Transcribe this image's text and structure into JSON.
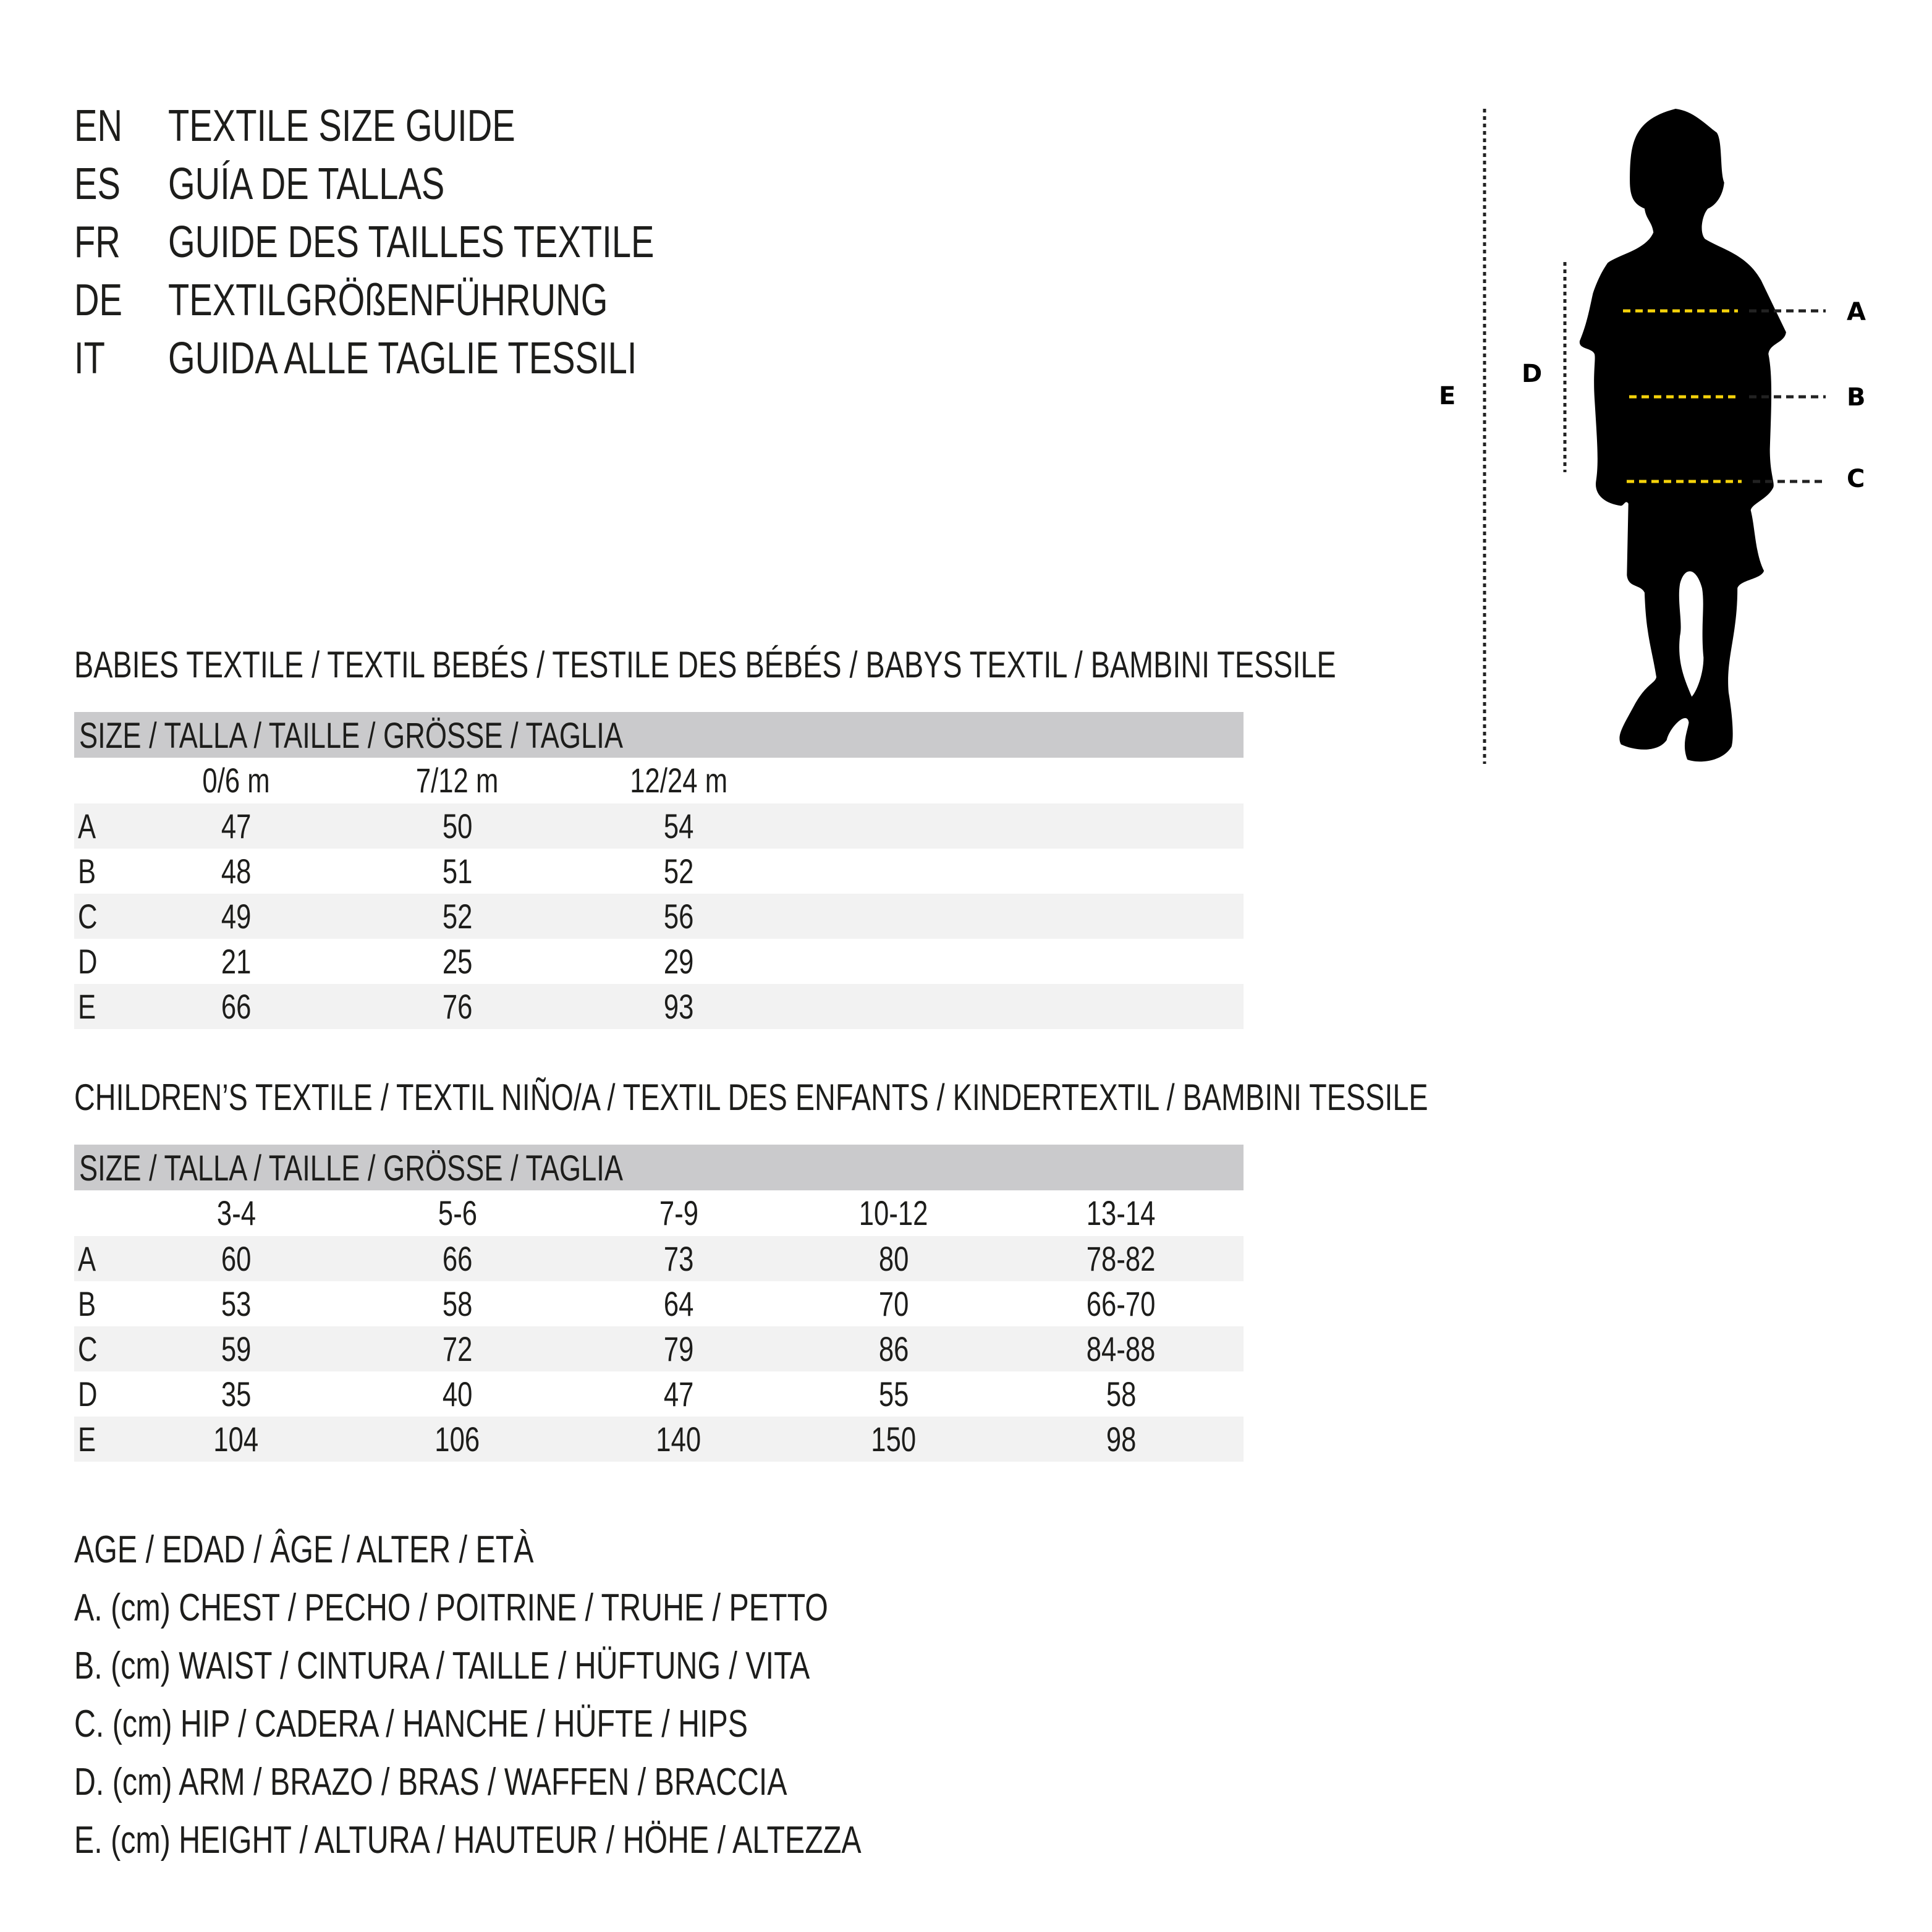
{
  "titles": [
    {
      "code": "EN",
      "text": "TEXTILE SIZE GUIDE"
    },
    {
      "code": "ES",
      "text": "GUÍA DE TALLAS"
    },
    {
      "code": "FR",
      "text": "GUIDE DES TAILLES TEXTILE"
    },
    {
      "code": "DE",
      "text": "TEXTILGRÖßENFÜHRUNG"
    },
    {
      "code": "IT",
      "text": "GUIDA ALLE TAGLIE TESSILI"
    }
  ],
  "babies": {
    "heading": "BABIES TEXTILE / TEXTIL BEBÉS / TESTILE DES BÉBÉS / BABYS TEXTIL / BAMBINI TESSILE",
    "size_header": "SIZE / TALLA / TAILLE / GRÖSSE / TAGLIA",
    "columns": [
      "0/6 m",
      "7/12 m",
      "12/24 m"
    ],
    "rows": [
      {
        "label": "A",
        "values": [
          "47",
          "50",
          "54"
        ]
      },
      {
        "label": "B",
        "values": [
          "48",
          "51",
          "52"
        ]
      },
      {
        "label": "C",
        "values": [
          "49",
          "52",
          "56"
        ]
      },
      {
        "label": "D",
        "values": [
          "21",
          "25",
          "29"
        ]
      },
      {
        "label": "E",
        "values": [
          "66",
          "76",
          "93"
        ]
      }
    ]
  },
  "children": {
    "heading": "CHILDREN’S TEXTILE / TEXTIL NIÑO/A / TEXTIL DES ENFANTS / KINDERTEXTIL / BAMBINI TESSILE",
    "size_header": "SIZE / TALLA / TAILLE / GRÖSSE / TAGLIA",
    "columns": [
      "3-4",
      "5-6",
      "7-9",
      "10-12",
      "13-14"
    ],
    "rows": [
      {
        "label": "A",
        "values": [
          "60",
          "66",
          "73",
          "80",
          "78-82"
        ]
      },
      {
        "label": "B",
        "values": [
          "53",
          "58",
          "64",
          "70",
          "66-70"
        ]
      },
      {
        "label": "C",
        "values": [
          "59",
          "72",
          "79",
          "86",
          "84-88"
        ]
      },
      {
        "label": "D",
        "values": [
          "35",
          "40",
          "47",
          "55",
          "58"
        ]
      },
      {
        "label": "E",
        "values": [
          "104",
          "106",
          "140",
          "150",
          "98"
        ]
      }
    ]
  },
  "legend": [
    "AGE / EDAD / ÂGE / ALTER / ETÀ",
    "A. (cm) CHEST / PECHO / POITRINE / TRUHE / PETTO",
    "B. (cm) WAIST / CINTURA / TAILLE / HÜFTUNG / VITA",
    "C. (cm) HIP / CADERA / HANCHE / HÜFTE / HIPS",
    "D. (cm) ARM / BRAZO / BRAS / WAFFEN / BRACCIA",
    "E. (cm) HEIGHT / ALTURA / HAUTEUR / HÖHE / ALTEZZA"
  ],
  "figure": {
    "labels": {
      "a": "A",
      "b": "B",
      "c": "C",
      "d": "D",
      "e": "E"
    },
    "colors": {
      "silhouette": "#000000",
      "measure_line": "#f5d20a",
      "guide_line": "#222222",
      "header_bar": "#cacacc",
      "row_shade": "#f2f2f2"
    }
  }
}
